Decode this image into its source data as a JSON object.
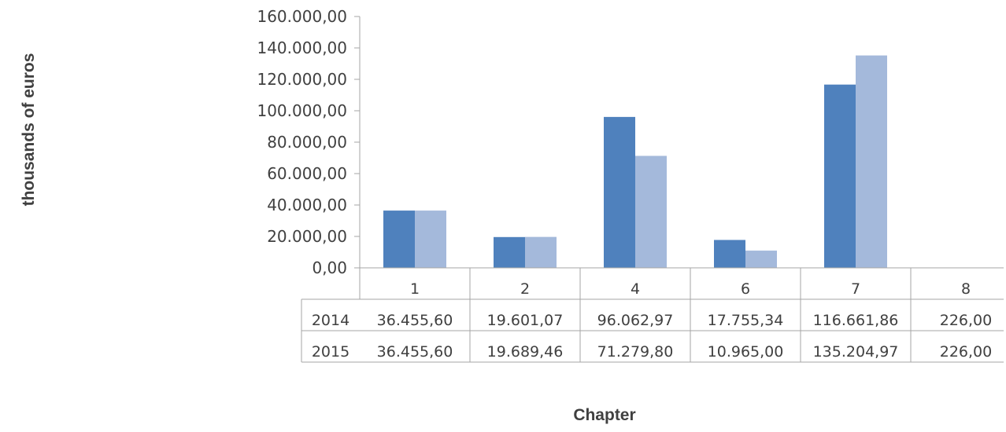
{
  "chart_data": {
    "type": "bar",
    "ylabel": "thousands of euros",
    "xlabel": "Chapter",
    "ylim": [
      0,
      160000
    ],
    "y_tick_step": 20000,
    "y_tick_labels": [
      "0,00",
      "20.000,00",
      "40.000,00",
      "60.000,00",
      "80.000,00",
      "100.000,00",
      "120.000,00",
      "140.000,00",
      "160.000,00"
    ],
    "categories": [
      "1",
      "2",
      "4",
      "6",
      "7",
      "8"
    ],
    "series": [
      {
        "name": "2014",
        "color": "#4f81bd",
        "values": [
          36455.6,
          19601.07,
          96062.97,
          17755.34,
          116661.86,
          226.0
        ],
        "labels": [
          "36.455,60",
          "19.601,07",
          "96.062,97",
          "17.755,34",
          "116.661,86",
          "226,00"
        ]
      },
      {
        "name": "2015",
        "color": "#a4b9db",
        "values": [
          36455.6,
          19689.46,
          71279.8,
          10965.0,
          135204.97,
          226.0
        ],
        "labels": [
          "36.455,60",
          "19.689,46",
          "71.279,80",
          "10.965,00",
          "135.204,97",
          "226,00"
        ]
      }
    ],
    "grid": false,
    "legend": "data-table-left"
  }
}
